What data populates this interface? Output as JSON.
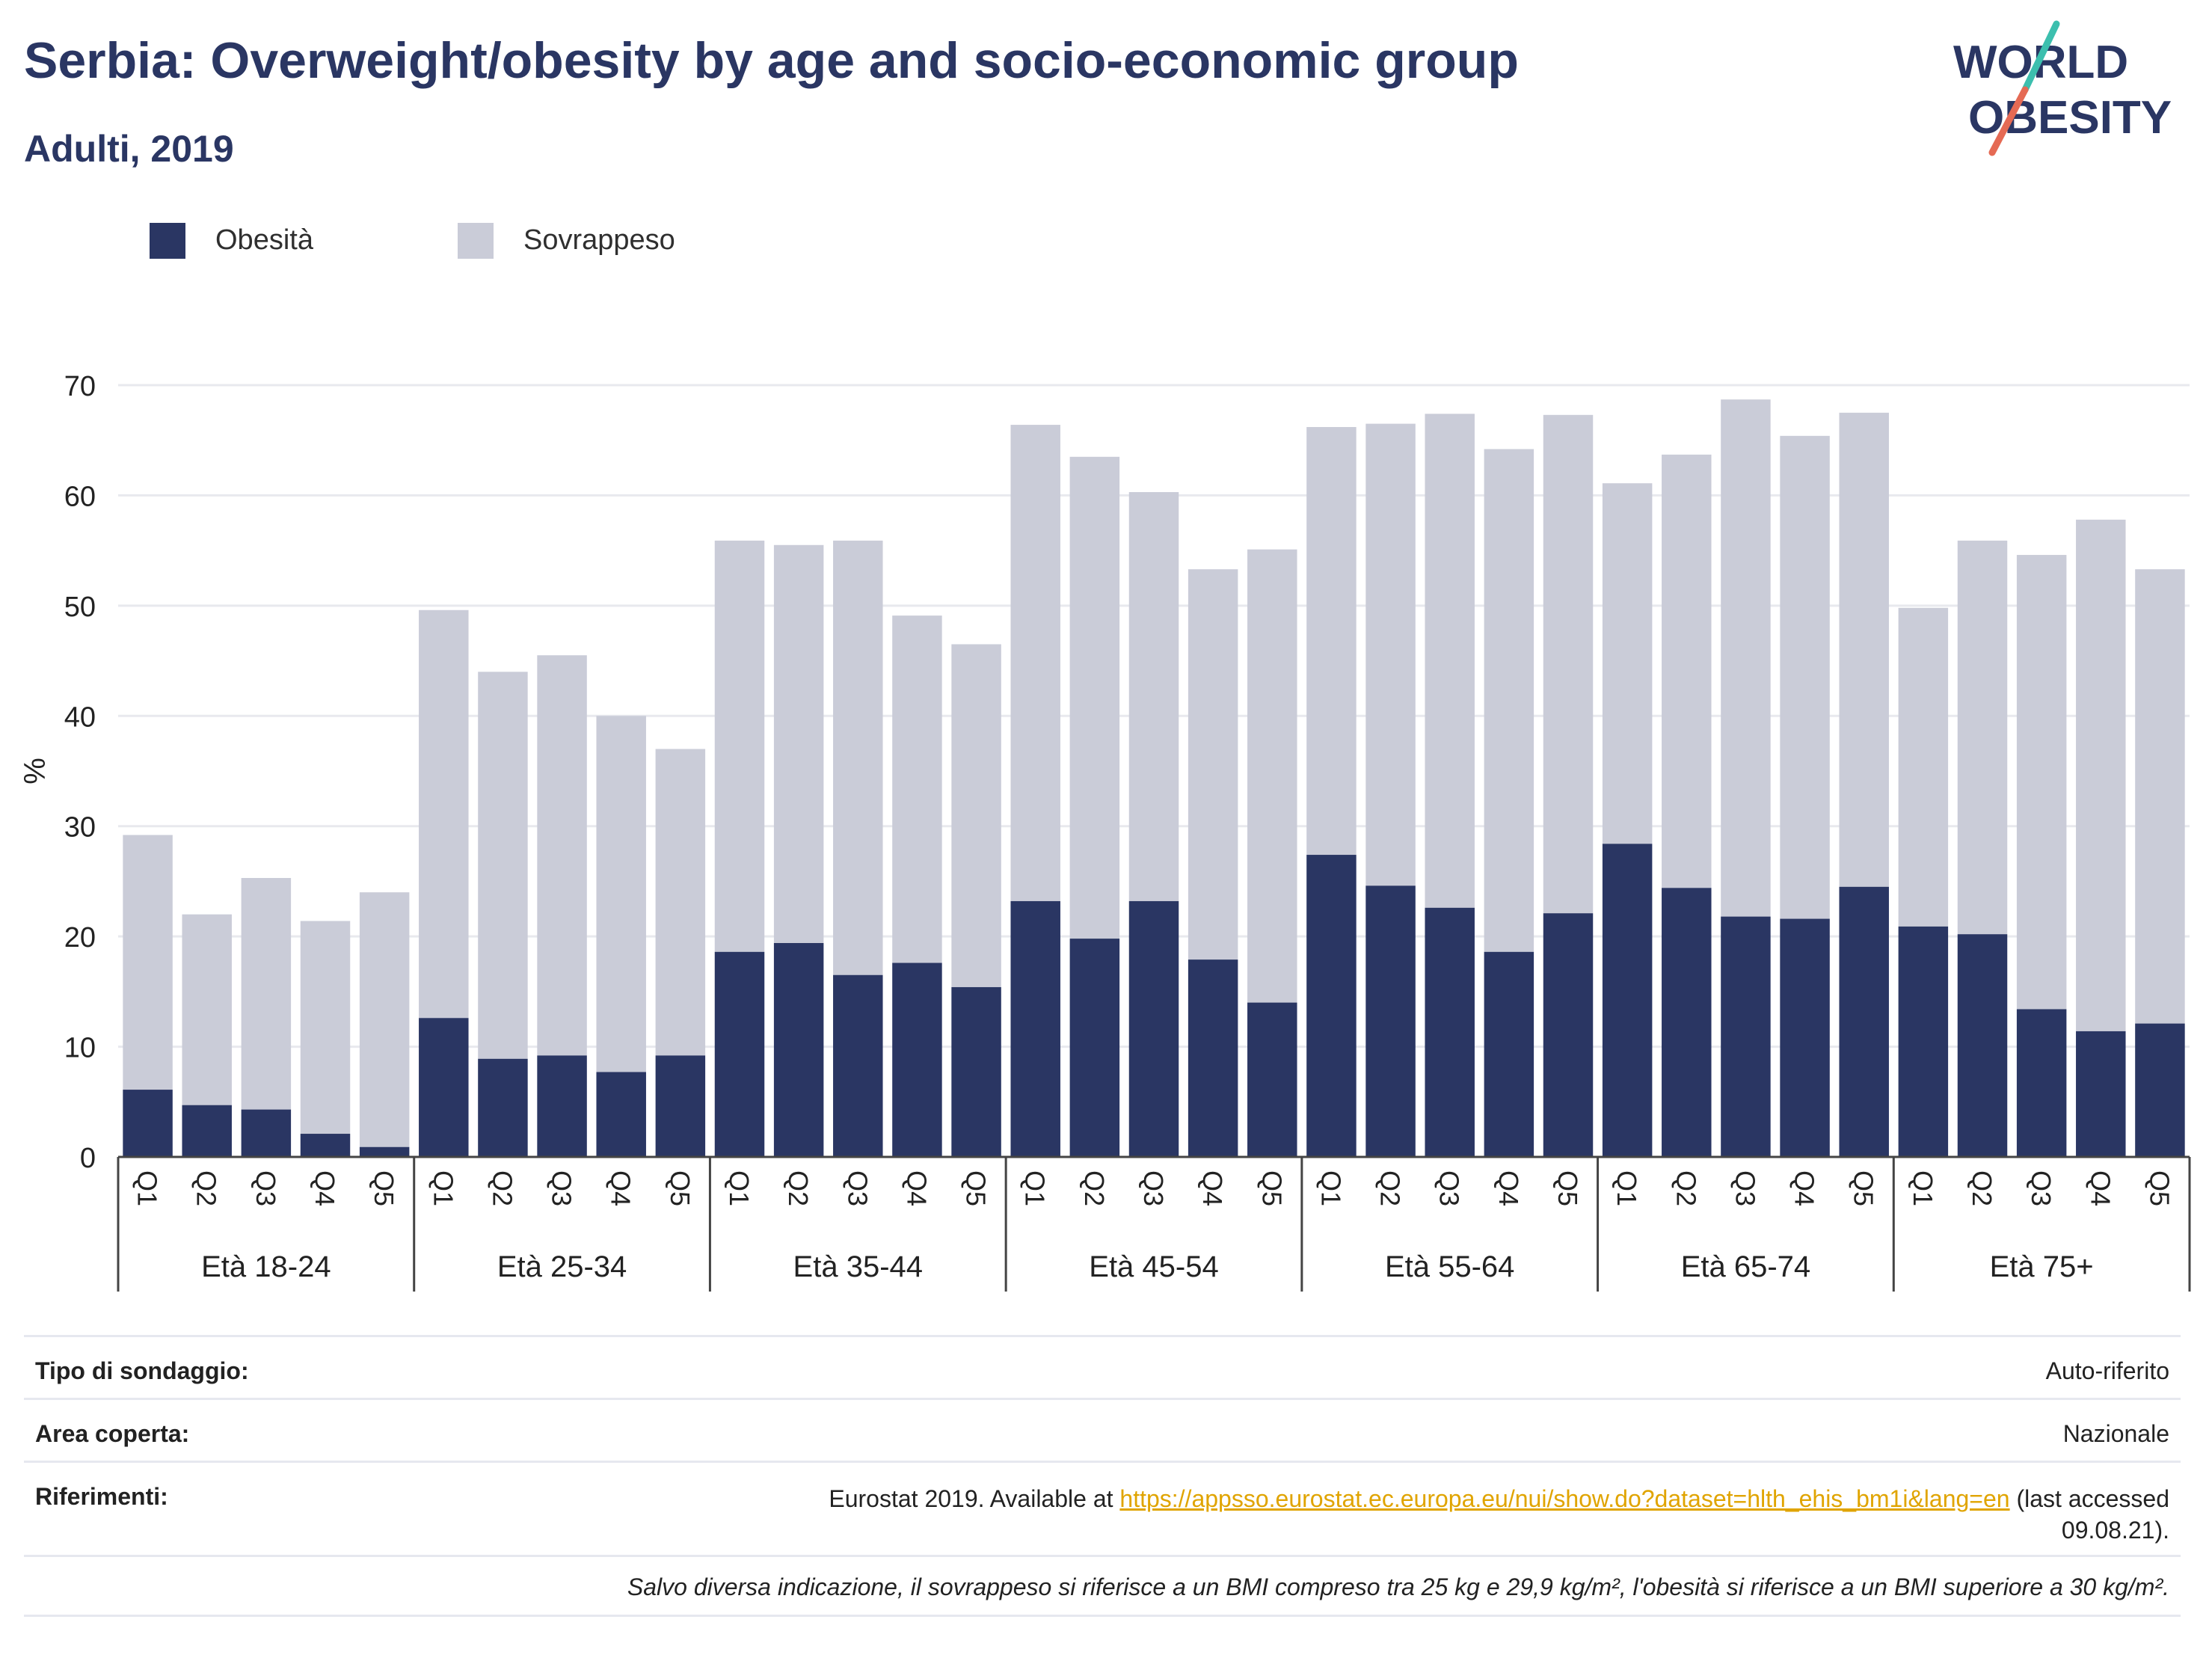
{
  "header": {
    "title": "Serbia: Overweight/obesity by age and socio-economic group",
    "subtitle": "Adulti, 2019",
    "logo_line1": "WORLD",
    "logo_line2": "OBESITY"
  },
  "legend": {
    "items": [
      {
        "label": "Obesità",
        "color": "#2a3663"
      },
      {
        "label": "Sovrappeso",
        "color": "#caccd8"
      }
    ]
  },
  "chart_data": {
    "type": "bar",
    "stacked": true,
    "ylabel": "%",
    "ylim": [
      0,
      70
    ],
    "yticks": [
      0,
      10,
      20,
      30,
      40,
      50,
      60,
      70
    ],
    "grid": true,
    "legend_position": "top-left",
    "colors": {
      "obesity": "#2a3663",
      "overweight": "#caccd8"
    },
    "groups": [
      "Età 18-24",
      "Età 25-34",
      "Età 35-44",
      "Età 45-54",
      "Età 55-64",
      "Età 65-74",
      "Età 75+"
    ],
    "subcategories": [
      "Q1",
      "Q2",
      "Q3",
      "Q4",
      "Q5"
    ],
    "series": [
      {
        "name": "Obesità",
        "values": [
          6.1,
          4.7,
          4.3,
          2.1,
          0.9,
          12.6,
          8.9,
          9.2,
          7.7,
          9.2,
          18.6,
          19.4,
          16.5,
          17.6,
          15.4,
          23.2,
          19.8,
          23.2,
          17.9,
          14.0,
          27.4,
          24.6,
          22.6,
          18.6,
          22.1,
          28.4,
          24.4,
          21.8,
          21.6,
          24.5,
          20.9,
          20.2,
          13.4,
          11.4,
          12.1
        ]
      },
      {
        "name": "Sovrappeso",
        "values": [
          23.1,
          17.3,
          21.0,
          19.3,
          23.1,
          37.0,
          35.1,
          36.3,
          32.3,
          27.8,
          37.3,
          36.1,
          39.4,
          31.5,
          31.1,
          43.2,
          43.7,
          37.1,
          35.4,
          41.1,
          38.8,
          41.9,
          44.8,
          45.6,
          45.2,
          32.7,
          39.3,
          46.9,
          43.8,
          43.0,
          28.9,
          35.7,
          41.2,
          46.4,
          41.2
        ]
      }
    ]
  },
  "info": {
    "survey_type_label": "Tipo di sondaggio:",
    "survey_type_value": "Auto-riferito",
    "area_label": "Area coperta:",
    "area_value": "Nazionale",
    "references_label": "Riferimenti:",
    "references_prefix": "Eurostat 2019. Available at",
    "references_link": "https://appsso.eurostat.ec.europa.eu/nui/show.do?dataset=hlth_ehis_bm1i&lang=en",
    "references_suffix": "(last accessed",
    "references_date": "09.08.21).",
    "footnote": "Salvo diversa indicazione, il sovrappeso si riferisce a un BMI compreso tra 25 kg e 29,9 kg/m², l'obesità si riferisce a un BMI superiore a 30 kg/m²."
  }
}
